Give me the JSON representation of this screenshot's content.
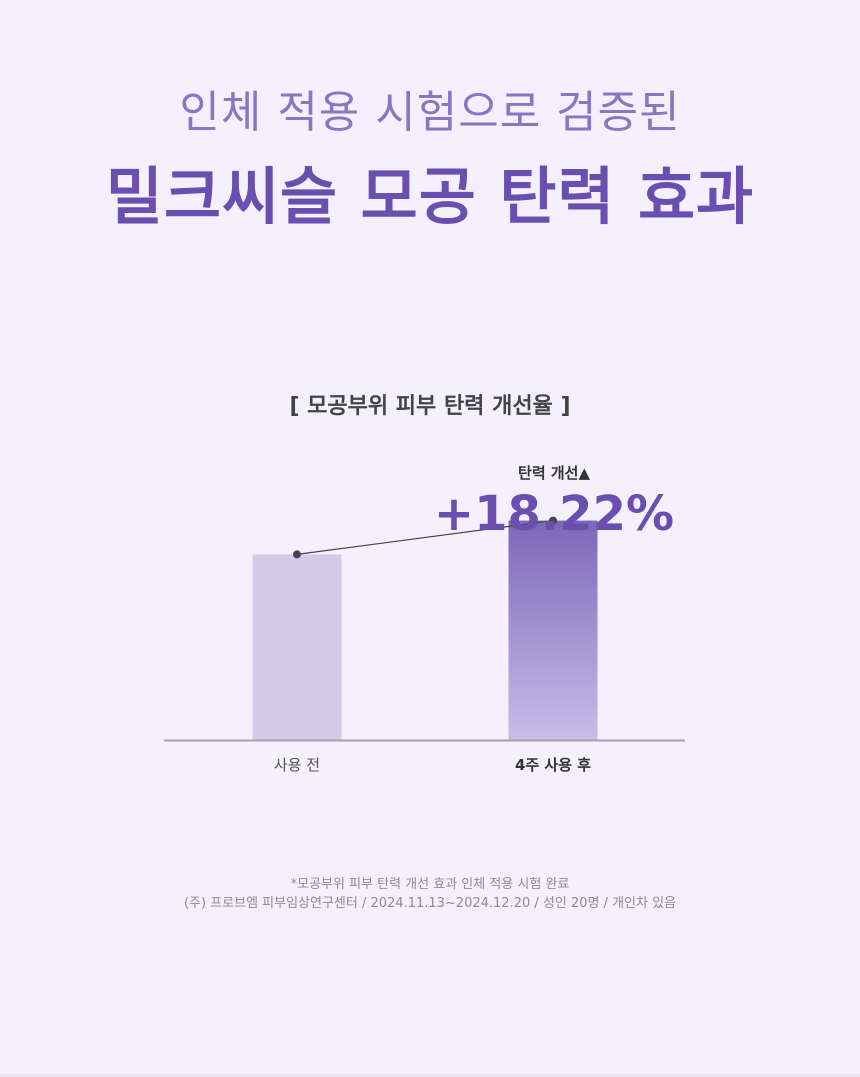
{
  "header": {
    "subtitle": "인체 적용 시험으로 검증된",
    "title": "밀크씨슬 모공 탄력 효과"
  },
  "chart_data": {
    "type": "bar",
    "title": "[ 모공부위 피부 탄력 개선율 ]",
    "categories": [
      "사용 전",
      "4주 사용 후"
    ],
    "values": [
      100,
      118.22
    ],
    "ylim": [
      0,
      125
    ],
    "annotation": {
      "label": "탄력 개선▲",
      "value": "+18.22%"
    },
    "trend_line": true,
    "colors": {
      "before_bar": "#d4cbea",
      "after_bar_top": "#7b68b8",
      "after_bar_bottom": "#c7bde9",
      "line": "#444444",
      "axis": "#a8a3ae"
    }
  },
  "footnotes": [
    "*모공부위 피부 탄력 개선 효과 인체 적용 시험 완료",
    "(주) 프로브엠 피부임상연구센터 / 2024.11.13~2024.12.20 / 성인 20명 / 개인차 있음"
  ]
}
